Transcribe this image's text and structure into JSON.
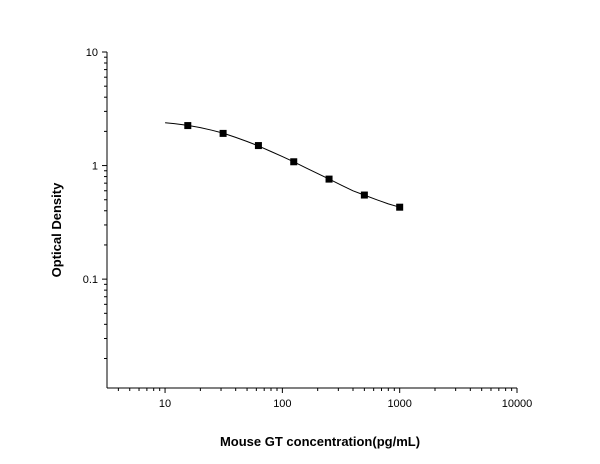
{
  "chart_data": {
    "type": "scatter",
    "xlabel": "Mouse GT concentration(pg/mL)",
    "ylabel": "Optical Density",
    "xscale": "log",
    "yscale": "log",
    "xlim": [
      3.2,
      10000
    ],
    "ylim": [
      0.011,
      10
    ],
    "x_ticks": [
      10,
      100,
      1000,
      10000
    ],
    "x_tick_labels": [
      "10",
      "100",
      "1000",
      "10000"
    ],
    "y_ticks": [
      0.1,
      1,
      10
    ],
    "y_tick_labels": [
      "0.1",
      "1",
      "10"
    ],
    "grid": false,
    "legend": "none",
    "series": [
      {
        "marker": "square",
        "x": [
          15.625,
          31.25,
          62.5,
          125,
          250,
          500,
          1000
        ],
        "y": [
          2.25,
          1.92,
          1.5,
          1.08,
          0.76,
          0.55,
          0.43
        ]
      }
    ],
    "fit_curve": {
      "x": [
        10,
        12,
        15.625,
        20,
        25,
        31.25,
        40,
        50,
        62.5,
        80,
        100,
        125,
        160,
        200,
        250,
        320,
        400,
        500,
        640,
        800,
        1000
      ],
      "y": [
        2.38,
        2.34,
        2.26,
        2.16,
        2.05,
        1.93,
        1.77,
        1.63,
        1.49,
        1.33,
        1.2,
        1.08,
        0.95,
        0.85,
        0.76,
        0.67,
        0.6,
        0.55,
        0.5,
        0.46,
        0.43
      ]
    },
    "colors": {
      "axis": "#000000",
      "marker": "#000000",
      "curve": "#000000"
    }
  }
}
